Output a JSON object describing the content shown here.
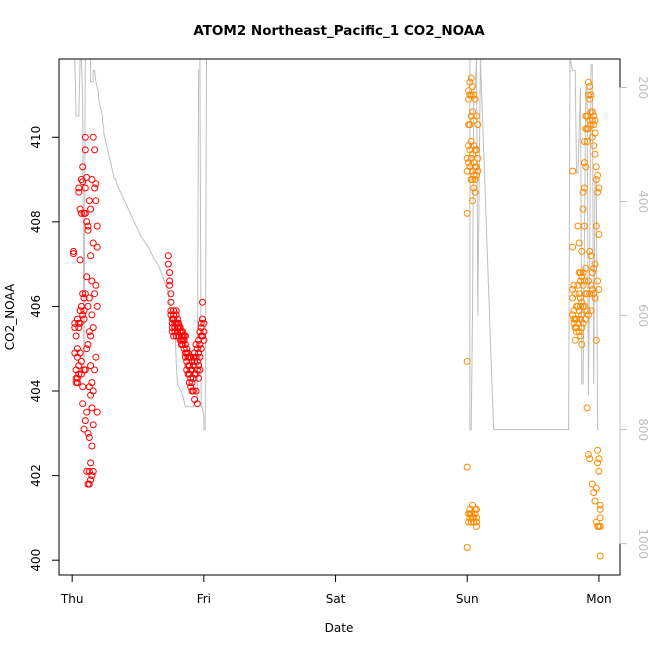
{
  "chart_data": {
    "type": "scatter",
    "title": "ATOM2 Northeast_Pacific_1 CO2_NOAA",
    "xlabel": "Date",
    "ylabel": "CO2_NOAA",
    "x_categories": [
      "Thu",
      "Fri",
      "Sat",
      "Sun",
      "Mon"
    ],
    "xlim": [
      -0.1,
      4.16
    ],
    "ylim": [
      399.65,
      411.85
    ],
    "yticks": [
      "400",
      "402",
      "404",
      "406",
      "408",
      "410"
    ],
    "y2lim": [
      1055,
      150
    ],
    "y2ticks": [
      "200",
      "400",
      "600",
      "800",
      "1000"
    ],
    "grid": false,
    "colors": {
      "series1": "#ff0000",
      "series2": "#ff8c00",
      "altitude": "#bfbfbf",
      "axis": "#000000"
    },
    "series": [
      {
        "color": "#ff0000",
        "x": [
          0.01,
          0.01,
          0.02,
          0.02,
          0.02,
          0.03,
          0.03,
          0.03,
          0.03,
          0.04,
          0.04,
          0.04,
          0.04,
          0.04,
          0.05,
          0.05,
          0.05,
          0.05,
          0.05,
          0.05,
          0.06,
          0.06,
          0.06,
          0.06,
          0.06,
          0.07,
          0.07,
          0.07,
          0.07,
          0.07,
          0.08,
          0.08,
          0.08,
          0.08,
          0.08,
          0.08,
          0.09,
          0.09,
          0.09,
          0.09,
          0.09,
          0.09,
          0.1,
          0.1,
          0.1,
          0.1,
          0.1,
          0.1,
          0.1,
          0.11,
          0.11,
          0.11,
          0.11,
          0.11,
          0.11,
          0.12,
          0.12,
          0.12,
          0.12,
          0.12,
          0.12,
          0.13,
          0.13,
          0.13,
          0.13,
          0.13,
          0.13,
          0.13,
          0.14,
          0.14,
          0.14,
          0.14,
          0.14,
          0.14,
          0.14,
          0.15,
          0.15,
          0.15,
          0.15,
          0.15,
          0.15,
          0.15,
          0.16,
          0.16,
          0.16,
          0.16,
          0.16,
          0.16,
          0.17,
          0.17,
          0.17,
          0.17,
          0.18,
          0.18,
          0.18,
          0.18,
          0.19,
          0.19,
          0.19,
          0.19,
          0.73,
          0.73,
          0.74,
          0.74,
          0.74,
          0.75,
          0.75,
          0.75,
          0.75,
          0.76,
          0.76,
          0.76,
          0.76,
          0.77,
          0.77,
          0.77,
          0.77,
          0.78,
          0.78,
          0.78,
          0.78,
          0.79,
          0.79,
          0.79,
          0.79,
          0.8,
          0.8,
          0.8,
          0.8,
          0.81,
          0.81,
          0.81,
          0.81,
          0.82,
          0.82,
          0.82,
          0.82,
          0.83,
          0.83,
          0.83,
          0.83,
          0.84,
          0.84,
          0.84,
          0.84,
          0.85,
          0.85,
          0.85,
          0.85,
          0.86,
          0.86,
          0.86,
          0.86,
          0.87,
          0.87,
          0.87,
          0.87,
          0.88,
          0.88,
          0.88,
          0.88,
          0.89,
          0.89,
          0.89,
          0.89,
          0.9,
          0.9,
          0.9,
          0.9,
          0.91,
          0.91,
          0.91,
          0.91,
          0.92,
          0.92,
          0.92,
          0.92,
          0.93,
          0.93,
          0.93,
          0.93,
          0.94,
          0.94,
          0.94,
          0.94,
          0.95,
          0.95,
          0.95,
          0.95,
          0.96,
          0.96,
          0.96,
          0.96,
          0.97,
          0.97,
          0.97,
          0.97,
          0.98,
          0.98,
          0.98,
          0.98,
          0.99,
          0.99,
          0.99,
          1.0,
          1.0,
          1.0
        ],
        "y": [
          407.3,
          407.25,
          405.6,
          405.5,
          404.9,
          405.3,
          404.5,
          404.3,
          404.2,
          405.7,
          404.8,
          404.3,
          404.2,
          405.0,
          408.8,
          408.7,
          405.6,
          405.5,
          404.6,
          404.4,
          408.3,
          407.1,
          405.9,
          405.6,
          404.9,
          409.0,
          408.2,
          406.0,
          404.7,
          404.4,
          409.3,
          408.95,
          406.3,
          405.8,
          404.1,
          403.7,
          408.2,
          406.2,
          405.9,
          405.7,
          404.5,
          403.1,
          410.0,
          409.7,
          408.8,
          408.2,
          406.3,
          404.5,
          403.3,
          409.05,
          408.0,
          406.7,
          405.0,
          403.5,
          402.1,
          407.8,
          406.0,
          405.1,
          403.0,
          401.8,
          407.9,
          406.2,
          405.4,
          404.1,
          402.9,
          402.1,
          401.8,
          408.5,
          407.2,
          405.3,
          404.6,
          403.9,
          402.3,
          401.9,
          408.3,
          406.6,
          405.8,
          404.2,
          403.6,
          402.7,
          402.0,
          409.0,
          407.5,
          405.5,
          404.0,
          403.2,
          402.1,
          410.0,
          408.8,
          406.3,
          404.5,
          409.7,
          408.5,
          406.5,
          404.8,
          408.9,
          407.9,
          406.0,
          403.5,
          407.4,
          407.2,
          407.0,
          406.8,
          406.6,
          406.5,
          406.3,
          406.1,
          405.9,
          405.8,
          405.7,
          405.6,
          405.5,
          405.4,
          405.3,
          405.9,
          405.8,
          405.7,
          405.6,
          405.5,
          405.4,
          405.5,
          405.9,
          405.8,
          405.6,
          405.3,
          405.7,
          405.6,
          405.5,
          405.4,
          405.3,
          405.6,
          405.5,
          405.5,
          405.4,
          405.2,
          405.5,
          405.4,
          405.3,
          405.2,
          405.1,
          405.4,
          405.3,
          405.2,
          405.1,
          405.4,
          405.3,
          405.2,
          405.0,
          405.2,
          405.3,
          405.1,
          404.9,
          404.8,
          405.0,
          404.9,
          404.7,
          404.5,
          404.8,
          404.9,
          404.6,
          404.4,
          404.8,
          404.6,
          404.4,
          404.2,
          404.8,
          404.5,
          404.3,
          404.1,
          404.7,
          404.5,
          404.2,
          404.0,
          404.8,
          404.6,
          404.3,
          404.0,
          404.9,
          404.7,
          404.4,
          403.8,
          405.1,
          404.8,
          404.4,
          404.0,
          405.0,
          404.7,
          404.5,
          403.7,
          405.2,
          404.9,
          404.6,
          404.3,
          405.4,
          405.1,
          404.8,
          404.5,
          405.6,
          405.3,
          405.0,
          405.5,
          405.3,
          405.7,
          406.1,
          405.6,
          405.4,
          405.2
        ],
        "altitude": {
          "x": [
            0.0,
            0.02,
            0.03,
            0.04,
            0.05,
            0.06,
            0.06,
            0.07,
            0.08,
            0.08,
            0.09,
            0.09,
            0.1,
            0.11,
            0.12,
            0.13,
            0.14,
            0.14,
            0.15,
            0.16,
            0.16,
            0.17,
            0.18,
            0.19,
            0.2,
            0.2,
            0.21,
            0.22,
            0.23,
            0.23,
            0.24,
            0.24,
            0.25,
            0.26,
            0.27,
            0.28,
            0.29,
            0.3,
            0.31,
            0.32,
            0.33,
            0.34,
            0.36,
            0.38,
            0.4,
            0.42,
            0.44,
            0.46,
            0.48,
            0.5,
            0.52,
            0.55,
            0.58,
            0.6,
            0.62,
            0.65,
            0.67,
            0.7,
            0.73,
            0.75,
            0.77,
            0.78,
            0.79,
            0.8,
            0.82,
            0.84,
            0.86,
            0.88,
            0.9,
            0.91,
            0.92,
            0.93,
            0.93,
            0.94,
            0.95,
            0.96,
            0.96,
            0.97,
            0.97,
            0.98,
            0.99,
            1.0,
            1.0,
            1.01,
            1.02,
            1.05,
            1.1,
            1.2,
            1.3,
            1.4,
            1.5,
            1.6,
            1.7,
            1.8,
            1.9,
            2.0,
            2.1,
            2.2,
            2.3,
            2.4,
            2.5,
            2.6,
            2.7,
            2.8,
            2.9,
            3.0,
            3.01,
            3.02,
            3.02,
            3.03,
            3.03,
            3.04,
            3.05,
            3.06,
            3.07,
            3.08,
            3.1,
            3.2,
            3.3,
            3.4,
            3.5,
            3.6,
            3.7,
            3.75,
            3.76,
            3.77,
            3.78,
            3.8,
            3.82,
            3.83,
            3.84,
            3.86,
            3.87,
            3.88,
            3.9,
            3.91,
            3.92,
            3.93,
            3.94,
            3.95,
            3.96,
            3.97,
            3.98,
            3.99,
            4.0
          ],
          "alt": [
            150,
            150,
            250,
            250,
            250,
            150,
            150,
            150,
            220,
            220,
            700,
            700,
            150,
            150,
            150,
            150,
            150,
            190,
            190,
            190,
            170,
            170,
            190,
            200,
            210,
            220,
            230,
            240,
            250,
            260,
            270,
            280,
            290,
            300,
            310,
            320,
            330,
            340,
            350,
            360,
            360,
            370,
            380,
            390,
            400,
            410,
            420,
            430,
            440,
            450,
            460,
            470,
            480,
            490,
            500,
            510,
            520,
            540,
            560,
            600,
            610,
            620,
            680,
            720,
            730,
            740,
            760,
            760,
            760,
            760,
            760,
            750,
            750,
            750,
            750,
            170,
            170,
            170,
            150,
            760,
            760,
            780,
            800,
            800,
            150,
            150,
            150,
            150,
            150,
            150,
            150,
            150,
            150,
            150,
            150,
            150,
            150,
            150,
            150,
            150,
            150,
            150,
            150,
            150,
            150,
            150,
            150,
            150,
            800,
            800,
            800,
            600,
            200,
            200,
            150,
            600,
            150,
            800,
            800,
            800,
            800,
            800,
            800,
            800,
            800,
            800,
            150,
            170,
            170,
            350,
            350,
            200,
            720,
            720,
            200,
            200,
            740,
            500,
            160,
            160,
            720,
            360,
            360,
            800,
            800,
            800,
            800,
            800,
            800
          ]
        }
      },
      {
        "color": "#ff8c00",
        "x": [
          3.0,
          3.0,
          3.0,
          3.0,
          3.0,
          3.0,
          3.01,
          3.01,
          3.01,
          3.01,
          3.01,
          3.01,
          3.01,
          3.02,
          3.02,
          3.02,
          3.02,
          3.02,
          3.02,
          3.02,
          3.02,
          3.03,
          3.03,
          3.03,
          3.03,
          3.03,
          3.03,
          3.03,
          3.03,
          3.04,
          3.04,
          3.04,
          3.04,
          3.04,
          3.04,
          3.04,
          3.04,
          3.05,
          3.05,
          3.05,
          3.05,
          3.05,
          3.05,
          3.05,
          3.05,
          3.06,
          3.06,
          3.06,
          3.06,
          3.06,
          3.06,
          3.06,
          3.07,
          3.07,
          3.07,
          3.07,
          3.07,
          3.07,
          3.07,
          3.07,
          3.08,
          3.08,
          3.08,
          3.8,
          3.8,
          3.8,
          3.8,
          3.8,
          3.81,
          3.81,
          3.81,
          3.81,
          3.82,
          3.82,
          3.82,
          3.82,
          3.83,
          3.83,
          3.83,
          3.83,
          3.84,
          3.84,
          3.84,
          3.84,
          3.85,
          3.85,
          3.85,
          3.85,
          3.85,
          3.86,
          3.86,
          3.86,
          3.86,
          3.86,
          3.86,
          3.87,
          3.87,
          3.87,
          3.87,
          3.87,
          3.87,
          3.88,
          3.88,
          3.88,
          3.88,
          3.88,
          3.88,
          3.89,
          3.89,
          3.89,
          3.89,
          3.89,
          3.89,
          3.9,
          3.9,
          3.9,
          3.9,
          3.9,
          3.9,
          3.91,
          3.91,
          3.91,
          3.91,
          3.91,
          3.91,
          3.92,
          3.92,
          3.92,
          3.92,
          3.92,
          3.92,
          3.93,
          3.93,
          3.93,
          3.93,
          3.93,
          3.93,
          3.94,
          3.94,
          3.94,
          3.94,
          3.94,
          3.94,
          3.95,
          3.95,
          3.95,
          3.95,
          3.95,
          3.95,
          3.96,
          3.96,
          3.96,
          3.96,
          3.96,
          3.96,
          3.97,
          3.97,
          3.97,
          3.97,
          3.97,
          3.97,
          3.98,
          3.98,
          3.98,
          3.98,
          3.98,
          3.98,
          3.99,
          3.99,
          3.99,
          3.99,
          3.99,
          3.99,
          4.0,
          4.0,
          4.0,
          4.0,
          4.0,
          4.0,
          4.01,
          4.01,
          4.01,
          4.01,
          4.01
        ],
        "y": [
          409.5,
          409.2,
          408.2,
          404.7,
          402.2,
          400.3,
          411.1,
          410.9,
          410.3,
          409.8,
          409.4,
          401.1,
          400.9,
          411.3,
          411.0,
          410.3,
          409.7,
          409.3,
          401.2,
          401.0,
          401.1,
          411.4,
          411.0,
          410.5,
          409.9,
          409.5,
          409.0,
          401.1,
          400.9,
          411.2,
          410.6,
          409.6,
          409.2,
          409.0,
          408.5,
          401.3,
          401.0,
          411.0,
          410.4,
          409.8,
          409.4,
          409.1,
          408.8,
          401.0,
          400.9,
          410.9,
          409.7,
          409.3,
          409.0,
          408.7,
          401.2,
          401.1,
          410.5,
          409.7,
          409.3,
          409.1,
          401.2,
          401.0,
          400.9,
          400.8,
          410.3,
          409.5,
          409.2,
          409.2,
          407.4,
          406.4,
          406.2,
          405.8,
          406.5,
          405.9,
          405.7,
          405.6,
          406.3,
          405.7,
          405.5,
          405.2,
          406.0,
          405.7,
          405.5,
          405.4,
          407.9,
          406.5,
          406.0,
          405.6,
          407.5,
          406.8,
          406.3,
          405.9,
          405.4,
          406.8,
          406.6,
          406.2,
          406.0,
          405.7,
          405.3,
          407.3,
          406.7,
          406.1,
          405.8,
          405.5,
          405.1,
          408.7,
          408.3,
          406.8,
          406.5,
          406.0,
          405.6,
          409.9,
          409.4,
          408.8,
          407.9,
          406.6,
          406.0,
          410.5,
          410.2,
          409.3,
          406.9,
          406.3,
          405.7,
          410.5,
          410.2,
          409.9,
          406.3,
          405.9,
          403.6,
          411.3,
          411.0,
          410.2,
          406.6,
          405.8,
          402.5,
          411.2,
          410.9,
          410.4,
          407.3,
          406.3,
          402.4,
          411.0,
          410.6,
          410.3,
          407.2,
          406.5,
          405.9,
          410.6,
          410.4,
          410.0,
          406.8,
          406.4,
          401.8,
          410.5,
          410.3,
          409.8,
          406.9,
          406.3,
          401.6,
          410.4,
          410.1,
          409.6,
          407.0,
          406.2,
          401.4,
          409.3,
          409.0,
          407.9,
          405.2,
          401.7,
          400.9,
          409.1,
          408.7,
          406.6,
          402.6,
          402.3,
          400.8,
          408.8,
          407.7,
          406.4,
          402.4,
          402.1,
          400.8,
          401.3,
          401.2,
          401.0,
          400.8,
          400.1
        ]
      }
    ]
  }
}
